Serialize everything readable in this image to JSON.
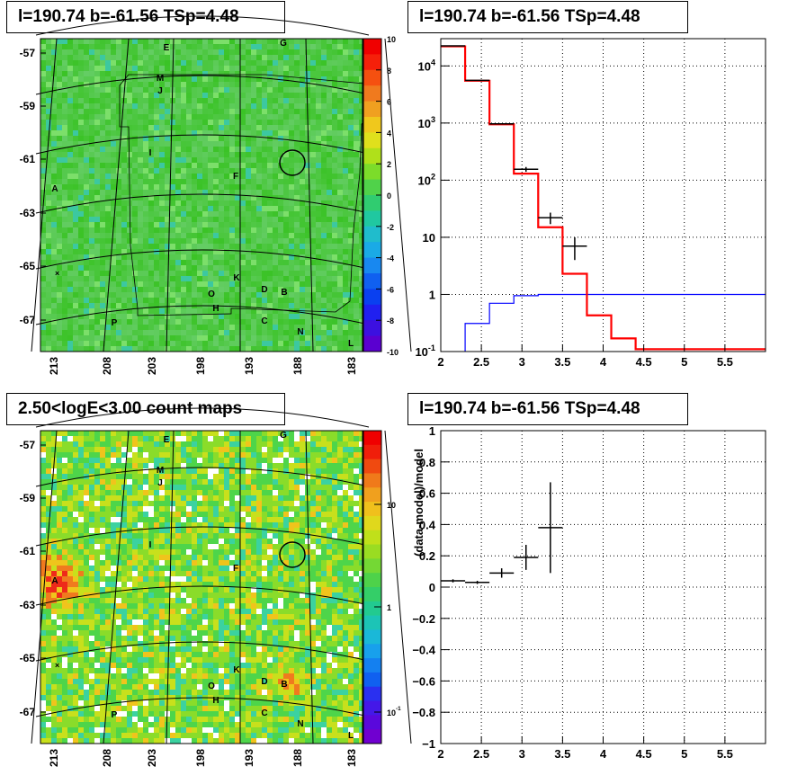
{
  "panels": {
    "top_left_title": "l=190.74 b=-61.56 TSp=4.48",
    "top_right_title": "l=190.74 b=-61.56 TSp=4.48",
    "bottom_left_title": "2.50<logE<3.00 count maps",
    "bottom_right_title": "l=190.74 b=-61.56 TSp=4.48"
  },
  "sky_axes": {
    "lat_labels": [
      "-57",
      "-59",
      "-61",
      "-63",
      "-65",
      "-67"
    ],
    "lon_labels": [
      "213",
      "208",
      "203",
      "198",
      "193",
      "188",
      "183"
    ]
  },
  "source_labels": {
    "top": [
      "E",
      "G",
      "M",
      "J",
      "I",
      "F",
      "A",
      "K",
      "O",
      "D",
      "B",
      "H",
      "C",
      "P",
      "N",
      "L"
    ],
    "bottom": [
      "E",
      "G",
      "M",
      "J",
      "I",
      "F",
      "A",
      "K",
      "O",
      "D",
      "B",
      "H",
      "C",
      "P",
      "N",
      "L"
    ]
  },
  "colors": {
    "model_hist": "#ff0000",
    "component_hist": "#0000ff",
    "data": "#000000",
    "map_bg": "#4fd14a"
  },
  "chart_data": [
    {
      "type": "heatmap",
      "title": "l=190.74 b=-61.56 TSp=4.48",
      "colorbar": {
        "ticks": [
          "10",
          "8",
          "6",
          "4",
          "2",
          "0",
          "-2",
          "-4",
          "-6",
          "-8",
          "-10"
        ],
        "range": [
          -10,
          10
        ]
      },
      "ylim": [
        -68.5,
        -56.5
      ],
      "xlim": [
        214.5,
        182
      ]
    },
    {
      "type": "line",
      "title": "l=190.74 b=-61.56 TSp=4.48",
      "xlim": [
        2,
        6
      ],
      "ylim": [
        0.1,
        30000
      ],
      "log_y": true,
      "grid": true,
      "x_ticks": [
        "2",
        "2.5",
        "3",
        "3.5",
        "4",
        "4.5",
        "5",
        "5.5"
      ],
      "y_ticks": [
        {
          "base": "10",
          "exp": "-1"
        },
        {
          "base": "1",
          "exp": ""
        },
        {
          "base": "10",
          "exp": ""
        },
        {
          "base": "10",
          "exp": "2"
        },
        {
          "base": "10",
          "exp": "3"
        },
        {
          "base": "10",
          "exp": "4"
        }
      ],
      "red_steps": [
        {
          "x0": 2.0,
          "x1": 2.3,
          "y": 22000
        },
        {
          "x0": 2.3,
          "x1": 2.6,
          "y": 5500
        },
        {
          "x0": 2.6,
          "x1": 2.9,
          "y": 950
        },
        {
          "x0": 2.9,
          "x1": 3.2,
          "y": 130
        },
        {
          "x0": 3.2,
          "x1": 3.5,
          "y": 15
        },
        {
          "x0": 3.5,
          "x1": 3.8,
          "y": 2.3
        },
        {
          "x0": 3.8,
          "x1": 4.1,
          "y": 0.43
        },
        {
          "x0": 4.1,
          "x1": 4.4,
          "y": 0.17
        },
        {
          "x0": 4.4,
          "x1": 6.0,
          "y": 0.11
        }
      ],
      "blue_steps": [
        {
          "x0": 2.3,
          "x1": 2.6,
          "y": 0.31
        },
        {
          "x0": 2.6,
          "x1": 2.9,
          "y": 0.7
        },
        {
          "x0": 2.9,
          "x1": 3.2,
          "y": 0.95
        },
        {
          "x0": 3.2,
          "x1": 6.0,
          "y": 1.0
        }
      ],
      "data_points": [
        {
          "x": 2.15,
          "xerr": 0.15,
          "y": 22500,
          "yerr": 0
        },
        {
          "x": 2.45,
          "xerr": 0.15,
          "y": 5600,
          "yerr": 0
        },
        {
          "x": 2.75,
          "xerr": 0.15,
          "y": 970,
          "yerr": 0
        },
        {
          "x": 3.05,
          "xerr": 0.15,
          "y": 155,
          "yerr": 15
        },
        {
          "x": 3.35,
          "xerr": 0.15,
          "y": 22,
          "yerr": 5
        },
        {
          "x": 3.65,
          "xerr": 0.15,
          "y": 7,
          "yerr": 3
        }
      ]
    },
    {
      "type": "heatmap",
      "title": "2.50<logE<3.00 count maps",
      "colorbar": {
        "ticks": [
          {
            "base": "10",
            "exp": ""
          },
          {
            "base": "1",
            "exp": ""
          },
          {
            "base": "10",
            "exp": "-1"
          }
        ],
        "log": true
      },
      "ylim": [
        -68.5,
        -56.5
      ],
      "xlim": [
        214.5,
        182
      ]
    },
    {
      "type": "scatter",
      "title": "l=190.74 b=-61.56 TSp=4.48",
      "ylabel": "(data-model)/model",
      "xlim": [
        2,
        6
      ],
      "ylim": [
        -1,
        1
      ],
      "grid": true,
      "x_ticks": [
        "2",
        "2.5",
        "3",
        "3.5",
        "4",
        "4.5",
        "5",
        "5.5"
      ],
      "y_ticks": [
        "1",
        "0.8",
        "0.6",
        "0.4",
        "0.2",
        "0",
        "−0.2",
        "−0.4",
        "−0.6",
        "−0.8",
        "−1"
      ],
      "points": [
        {
          "x": 2.15,
          "xerr": 0.15,
          "y": 0.04,
          "yerr": 0.01
        },
        {
          "x": 2.45,
          "xerr": 0.15,
          "y": 0.03,
          "yerr": 0.01
        },
        {
          "x": 2.75,
          "xerr": 0.15,
          "y": 0.09,
          "yerr": 0.03
        },
        {
          "x": 3.05,
          "xerr": 0.15,
          "y": 0.19,
          "yerr": 0.08
        },
        {
          "x": 3.35,
          "xerr": 0.15,
          "y": 0.38,
          "yerr": 0.29
        }
      ]
    }
  ]
}
